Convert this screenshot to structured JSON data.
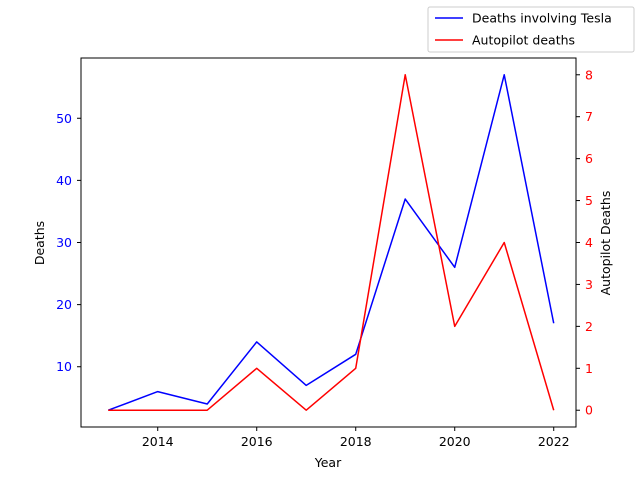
{
  "chart_data": {
    "type": "line",
    "x": [
      2013,
      2014,
      2015,
      2016,
      2017,
      2018,
      2019,
      2020,
      2021,
      2022
    ],
    "xlabel": "Year",
    "ylabel_left": "Deaths",
    "ylabel_right": "Autopilot Deaths",
    "x_ticks": [
      "2014",
      "2016",
      "2018",
      "2020",
      "2022"
    ],
    "x_tick_values": [
      2014,
      2016,
      2018,
      2020,
      2022
    ],
    "y_left_ticks": [
      "10",
      "20",
      "30",
      "40",
      "50"
    ],
    "y_left_tick_values": [
      10,
      20,
      30,
      40,
      50
    ],
    "y_right_ticks": [
      "0",
      "1",
      "2",
      "3",
      "4",
      "5",
      "6",
      "7",
      "8"
    ],
    "y_right_tick_values": [
      0,
      1,
      2,
      3,
      4,
      5,
      6,
      7,
      8
    ],
    "xlim": [
      2012.45,
      2022.45
    ],
    "ylim_left": [
      0.3,
      59.7
    ],
    "ylim_right": [
      -0.4,
      8.4
    ],
    "grid": false,
    "legend_placement": "top-right",
    "series": [
      {
        "name": "Deaths involving Tesla",
        "axis": "left",
        "color": "#0000ff",
        "values": [
          3,
          6,
          4,
          14,
          7,
          12,
          37,
          26,
          57,
          17
        ]
      },
      {
        "name": "Autopilot deaths",
        "axis": "right",
        "color": "#ff0000",
        "values": [
          0,
          0,
          0,
          1,
          0,
          1,
          8,
          2,
          4,
          0
        ]
      }
    ]
  }
}
